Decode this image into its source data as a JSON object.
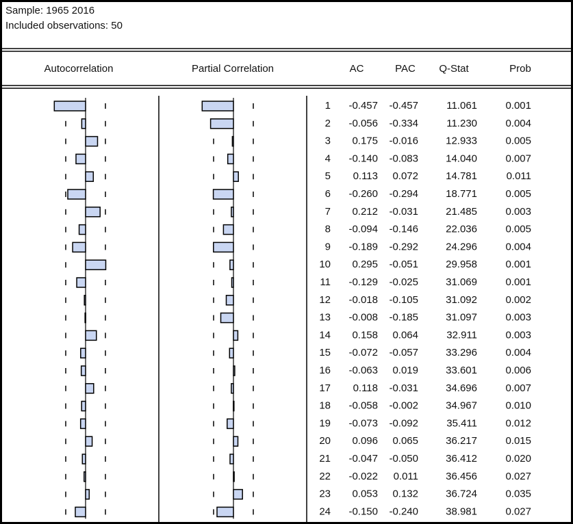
{
  "header": {
    "sample": "Sample: 1965 2016",
    "observations": "Included observations: 50"
  },
  "columns": [
    "Autocorrelation",
    "Partial Correlation",
    "AC",
    "PAC",
    "Q-Stat",
    "Prob"
  ],
  "rows": [
    [
      "1",
      "-0.457",
      "-0.457",
      "11.061",
      "0.001"
    ],
    [
      "2",
      "-0.056",
      "-0.334",
      "11.230",
      "0.004"
    ],
    [
      "3",
      "0.175",
      "-0.016",
      "12.933",
      "0.005"
    ],
    [
      "4",
      "-0.140",
      "-0.083",
      "14.040",
      "0.007"
    ],
    [
      "5",
      "0.113",
      "0.072",
      "14.781",
      "0.011"
    ],
    [
      "6",
      "-0.260",
      "-0.294",
      "18.771",
      "0.005"
    ],
    [
      "7",
      "0.212",
      "-0.031",
      "21.485",
      "0.003"
    ],
    [
      "8",
      "-0.094",
      "-0.146",
      "22.036",
      "0.005"
    ],
    [
      "9",
      "-0.189",
      "-0.292",
      "24.296",
      "0.004"
    ],
    [
      "10",
      "0.295",
      "-0.051",
      "29.958",
      "0.001"
    ],
    [
      "11",
      "-0.129",
      "-0.025",
      "31.069",
      "0.001"
    ],
    [
      "12",
      "-0.018",
      "-0.105",
      "31.092",
      "0.002"
    ],
    [
      "13",
      "-0.008",
      "-0.185",
      "31.097",
      "0.003"
    ],
    [
      "14",
      "0.158",
      "0.064",
      "32.911",
      "0.003"
    ],
    [
      "15",
      "-0.072",
      "-0.057",
      "33.296",
      "0.004"
    ],
    [
      "16",
      "-0.063",
      "0.019",
      "33.601",
      "0.006"
    ],
    [
      "17",
      "0.118",
      "-0.031",
      "34.696",
      "0.007"
    ],
    [
      "18",
      "-0.058",
      "-0.002",
      "34.967",
      "0.010"
    ],
    [
      "19",
      "-0.073",
      "-0.092",
      "35.411",
      "0.012"
    ],
    [
      "20",
      "0.096",
      "0.065",
      "36.217",
      "0.015"
    ],
    [
      "21",
      "-0.047",
      "-0.050",
      "36.412",
      "0.020"
    ],
    [
      "22",
      "-0.022",
      "0.011",
      "36.456",
      "0.027"
    ],
    [
      "23",
      "0.053",
      "0.132",
      "36.724",
      "0.035"
    ],
    [
      "24",
      "-0.150",
      "-0.240",
      "38.981",
      "0.027"
    ]
  ]
}
